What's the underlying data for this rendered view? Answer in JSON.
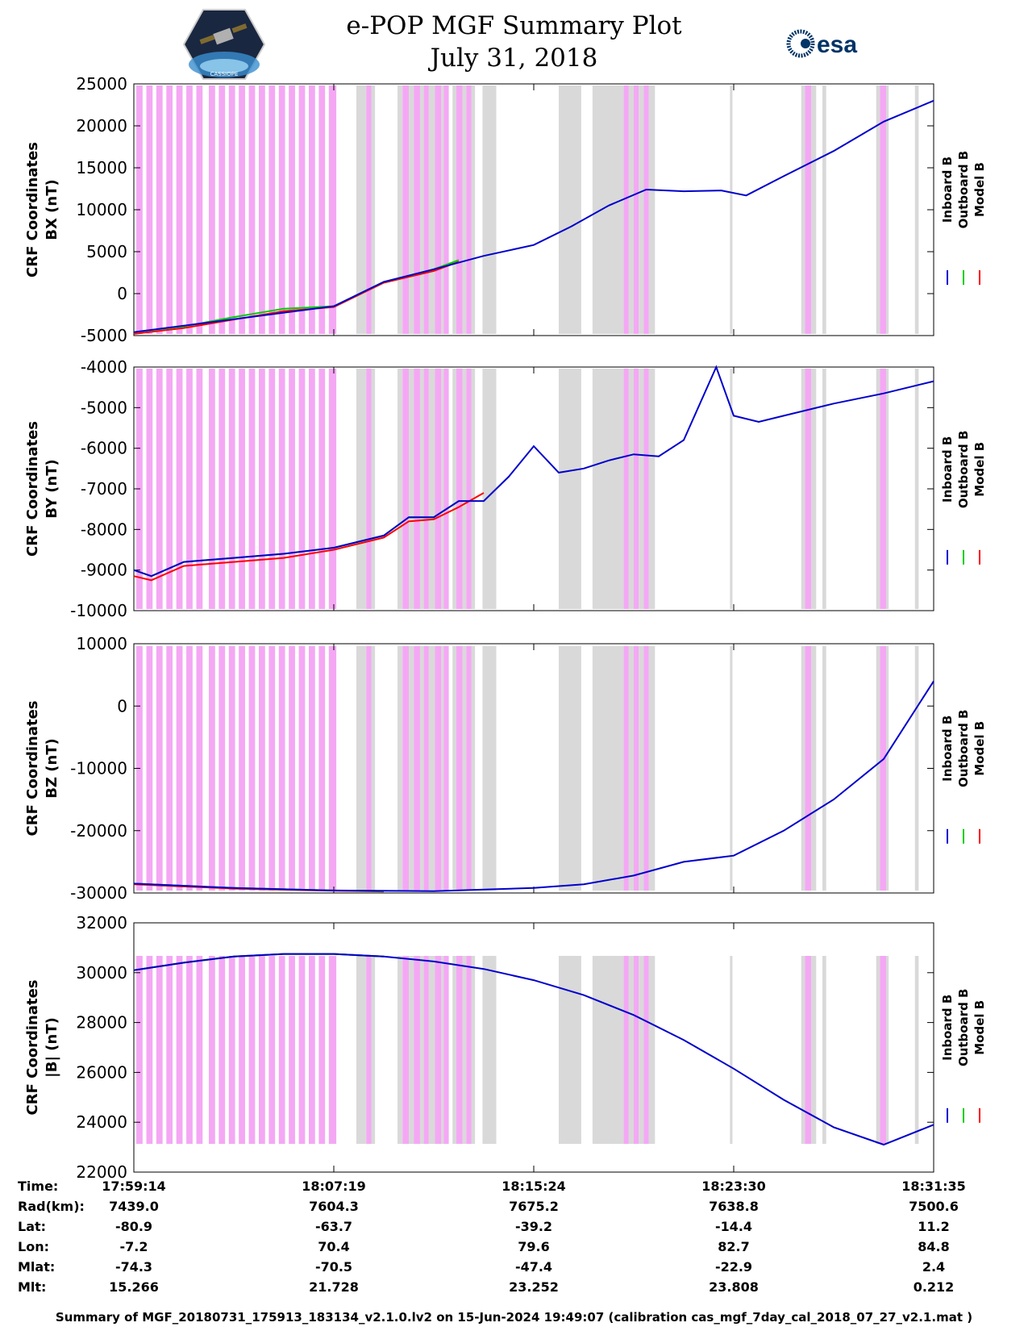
{
  "header": {
    "title_line1": "e-POP MGF Summary Plot",
    "title_line2": "July 31, 2018",
    "left_logo_text": "CASSIOPE",
    "right_logo_text": "esa"
  },
  "colors": {
    "inboard": "#0000cc",
    "outboard": "#00cc00",
    "model": "#ff0000",
    "magenta_band": "#f4a8f4",
    "gray_band": "#d9d9d9"
  },
  "chart_data": [
    {
      "type": "line",
      "ylabel_line1": "CRF Coordinates",
      "ylabel_line2": "BX (nT)",
      "ylim": [
        -5000,
        25000
      ],
      "yticks": [
        -5000,
        0,
        5000,
        10000,
        15000,
        20000,
        25000
      ],
      "legend": [
        "Inboard B",
        "Outboard B",
        "Model B"
      ],
      "series": [
        {
          "name": "Inboard B",
          "x": [
            0,
            8,
            10,
            12,
            14,
            16,
            17.5,
            19,
            20.5,
            22,
            23.5,
            24.5,
            26,
            28,
            30,
            32
          ],
          "values": [
            -4600,
            -1500,
            1400,
            2900,
            4500,
            5800,
            8000,
            10500,
            12400,
            12200,
            12300,
            11700,
            14000,
            17000,
            20500,
            23000
          ]
        },
        {
          "name": "Outboard B",
          "x": [
            0,
            2,
            4,
            6,
            8,
            10,
            12,
            13
          ],
          "values": [
            -4600,
            -3900,
            -2800,
            -1800,
            -1500,
            1400,
            2900,
            4000
          ]
        },
        {
          "name": "Model B",
          "x": [
            0,
            2,
            4,
            6,
            8,
            10,
            12,
            13
          ],
          "values": [
            -4800,
            -4100,
            -3100,
            -2100,
            -1600,
            1300,
            2700,
            3800
          ]
        }
      ]
    },
    {
      "type": "line",
      "ylabel_line1": "CRF Coordinates",
      "ylabel_line2": "BY (nT)",
      "ylim": [
        -10000,
        -4000
      ],
      "yticks": [
        -10000,
        -9000,
        -8000,
        -7000,
        -6000,
        -5000,
        -4000
      ],
      "legend": [
        "Inboard B",
        "Outboard B",
        "Model B"
      ],
      "series": [
        {
          "name": "Inboard B",
          "x": [
            0,
            0.7,
            2,
            4,
            6,
            8,
            10,
            11,
            12,
            13,
            14,
            15,
            16,
            17,
            18,
            19,
            20,
            21,
            22,
            23.3,
            24,
            25,
            26,
            28,
            30,
            32
          ],
          "values": [
            -9000,
            -9150,
            -8800,
            -8700,
            -8600,
            -8450,
            -8150,
            -7700,
            -7700,
            -7300,
            -7300,
            -6700,
            -5950,
            -6600,
            -6500,
            -6300,
            -6150,
            -6200,
            -5800,
            -4000,
            -5200,
            -5350,
            -5200,
            -4900,
            -4650,
            -4350
          ]
        },
        {
          "name": "Outboard B",
          "x": [
            0,
            0.7,
            2,
            4,
            6,
            8,
            10,
            11,
            12,
            13
          ],
          "values": [
            -9000,
            -9150,
            -8800,
            -8700,
            -8600,
            -8450,
            -8150,
            -7700,
            -7700,
            -7300
          ]
        },
        {
          "name": "Model B",
          "x": [
            0,
            0.7,
            2,
            4,
            6,
            8,
            10,
            11,
            12,
            13,
            14
          ],
          "values": [
            -9150,
            -9250,
            -8900,
            -8800,
            -8700,
            -8500,
            -8200,
            -7800,
            -7750,
            -7450,
            -7100
          ]
        }
      ]
    },
    {
      "type": "line",
      "ylabel_line1": "CRF Coordinates",
      "ylabel_line2": "BZ (nT)",
      "ylim": [
        -30000,
        10000
      ],
      "yticks": [
        -30000,
        -20000,
        -10000,
        0,
        10000
      ],
      "legend": [
        "Inboard B",
        "Outboard B",
        "Model B"
      ],
      "series": [
        {
          "name": "Inboard B",
          "x": [
            0,
            4,
            8,
            12,
            16,
            18,
            20,
            22,
            24,
            26,
            28,
            30,
            32
          ],
          "values": [
            -28500,
            -29200,
            -29600,
            -29700,
            -29200,
            -28600,
            -27200,
            -25000,
            -24000,
            -20000,
            -15000,
            -8500,
            4000
          ]
        },
        {
          "name": "Outboard B",
          "x": [
            0,
            4,
            8,
            10
          ],
          "values": [
            -28500,
            -29200,
            -29600,
            -29700
          ]
        },
        {
          "name": "Model B",
          "x": [
            0,
            4,
            8,
            10
          ],
          "values": [
            -28600,
            -29300,
            -29650,
            -29750
          ]
        }
      ]
    },
    {
      "type": "line",
      "ylabel_line1": "CRF Coordinates",
      "ylabel_line2": "|B| (nT)",
      "ylim": [
        22000,
        32000
      ],
      "yticks": [
        22000,
        24000,
        26000,
        28000,
        30000,
        32000
      ],
      "legend": [
        "Inboard B",
        "Outboard B",
        "Model B"
      ],
      "series": [
        {
          "name": "Inboard B",
          "x": [
            0,
            2,
            4,
            6,
            8,
            10,
            12,
            14,
            16,
            18,
            20,
            22,
            24,
            26,
            28,
            30,
            32
          ],
          "values": [
            30100,
            30400,
            30650,
            30750,
            30750,
            30650,
            30450,
            30150,
            29700,
            29100,
            28300,
            27300,
            26150,
            24900,
            23800,
            23100,
            23900
          ]
        },
        {
          "name": "Outboard B",
          "x": [
            0,
            2,
            4,
            6,
            8,
            10
          ],
          "values": [
            30100,
            30400,
            30650,
            30750,
            30750,
            30650
          ]
        },
        {
          "name": "Model B",
          "x": [
            0,
            2,
            4,
            6,
            8,
            10
          ],
          "values": [
            30100,
            30400,
            30650,
            30750,
            30750,
            30650
          ]
        }
      ]
    }
  ],
  "bands": {
    "x_range": [
      0,
      32
    ],
    "magenta": [
      [
        0.1,
        0.35
      ],
      [
        0.5,
        0.75
      ],
      [
        0.9,
        1.15
      ],
      [
        1.3,
        1.55
      ],
      [
        1.7,
        1.95
      ],
      [
        2.1,
        2.35
      ],
      [
        2.5,
        2.75
      ],
      [
        3.0,
        3.25
      ],
      [
        3.4,
        3.65
      ],
      [
        3.8,
        4.05
      ],
      [
        4.2,
        4.45
      ],
      [
        4.6,
        4.85
      ],
      [
        5.0,
        5.25
      ],
      [
        5.4,
        5.65
      ],
      [
        5.8,
        6.05
      ],
      [
        6.2,
        6.45
      ],
      [
        6.6,
        6.85
      ],
      [
        7.0,
        7.25
      ],
      [
        7.4,
        7.65
      ],
      [
        7.8,
        8.1
      ],
      [
        9.3,
        9.5
      ],
      [
        10.75,
        11.0
      ],
      [
        11.2,
        11.45
      ],
      [
        11.6,
        11.8
      ],
      [
        12.05,
        12.3
      ],
      [
        12.4,
        12.6
      ],
      [
        12.9,
        13.15
      ],
      [
        13.3,
        13.5
      ],
      [
        19.6,
        19.8
      ],
      [
        20.0,
        20.2
      ],
      [
        20.4,
        20.6
      ],
      [
        26.85,
        27.1
      ],
      [
        29.85,
        30.1
      ]
    ],
    "gray": [
      [
        8.9,
        9.3
      ],
      [
        9.5,
        9.65
      ],
      [
        10.55,
        10.75
      ],
      [
        11.0,
        11.2
      ],
      [
        11.45,
        11.6
      ],
      [
        11.8,
        12.05
      ],
      [
        12.3,
        12.4
      ],
      [
        12.75,
        12.9
      ],
      [
        13.15,
        13.3
      ],
      [
        13.5,
        13.65
      ],
      [
        13.95,
        14.5
      ],
      [
        17.0,
        17.9
      ],
      [
        18.35,
        19.6
      ],
      [
        19.8,
        20.0
      ],
      [
        20.2,
        20.4
      ],
      [
        20.6,
        20.85
      ],
      [
        23.85,
        23.95
      ],
      [
        26.7,
        26.85
      ],
      [
        27.1,
        27.3
      ],
      [
        27.55,
        27.7
      ],
      [
        29.7,
        29.85
      ],
      [
        30.1,
        30.2
      ],
      [
        31.25,
        31.4
      ]
    ]
  },
  "x_axis": {
    "tick_positions": [
      0,
      8,
      16,
      24,
      32
    ],
    "row_labels": [
      "Time:",
      "Rad(km):",
      "Lat:",
      "Lon:",
      "Mlat:",
      "Mlt:"
    ],
    "columns": [
      [
        "17:59:14",
        "7439.0",
        "-80.9",
        "-7.2",
        "-74.3",
        "15.266"
      ],
      [
        "18:07:19",
        "7604.3",
        "-63.7",
        "70.4",
        "-70.5",
        "21.728"
      ],
      [
        "18:15:24",
        "7675.2",
        "-39.2",
        "79.6",
        "-47.4",
        "23.252"
      ],
      [
        "18:23:30",
        "7638.8",
        "-14.4",
        "82.7",
        "-22.9",
        "23.808"
      ],
      [
        "18:31:35",
        "7500.6",
        "11.2",
        "84.8",
        "2.4",
        "0.212"
      ]
    ]
  },
  "footer": {
    "text": "Summary of MGF_20180731_175913_183134_v2.1.0.lv2 on 15-Jun-2024 19:49:07 (calibration cas_mgf_7day_cal_2018_07_27_v2.1.mat )"
  }
}
